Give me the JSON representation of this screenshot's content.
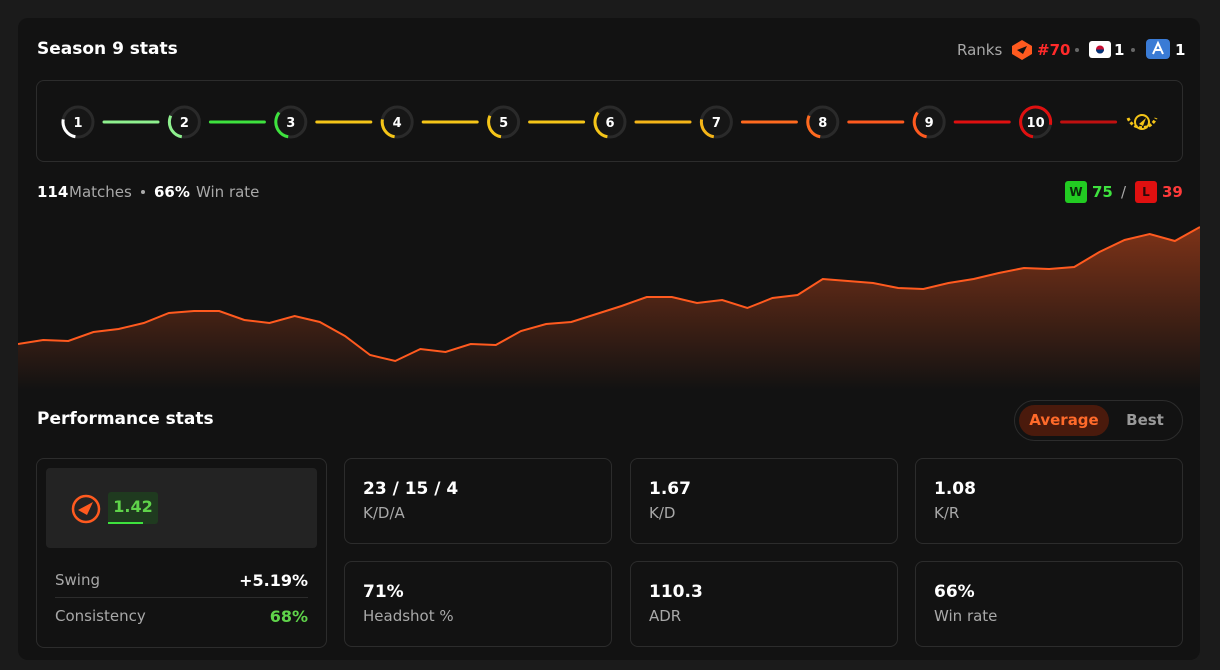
{
  "header": {
    "title": "Season 9 stats",
    "ranks_label": "Ranks",
    "ranks": [
      "#70",
      "1",
      "1"
    ]
  },
  "levels": [
    "1",
    "2",
    "3",
    "4",
    "5",
    "6",
    "7",
    "8",
    "9",
    "10"
  ],
  "summary": {
    "matches": "114",
    "matches_label": "Matches",
    "win_rate": "66%",
    "win_rate_label": "Win rate",
    "wins_badge": "W",
    "wins": "75",
    "separator": "/",
    "losses_badge": "L",
    "losses": "39"
  },
  "chart_data": {
    "type": "area",
    "color": "#ff5a1f",
    "ylim": [
      0,
      170
    ],
    "values": [
      41,
      45,
      44,
      53,
      56,
      62,
      72,
      74,
      74,
      65,
      62,
      69,
      63,
      49,
      30,
      24,
      36,
      33,
      41,
      40,
      54,
      61,
      63,
      71,
      79,
      88,
      88,
      82,
      85,
      77,
      87,
      90,
      106,
      104,
      102,
      97,
      96,
      102,
      106,
      112,
      117,
      116,
      118,
      133,
      145,
      151,
      144,
      158
    ]
  },
  "performance": {
    "title": "Performance stats",
    "toggle": [
      "Average",
      "Best"
    ],
    "rating": "1.42",
    "swing_label": "Swing",
    "swing": "+5.19%",
    "consistency_label": "Consistency",
    "consistency": "68%",
    "cards": [
      {
        "value": "23 / 15 / 4",
        "label": "K/D/A"
      },
      {
        "value": "1.67",
        "label": "K/D"
      },
      {
        "value": "1.08",
        "label": "K/R"
      },
      {
        "value": "71%",
        "label": "Headshot %"
      },
      {
        "value": "110.3",
        "label": "ADR"
      },
      {
        "value": "66%",
        "label": "Win rate"
      }
    ]
  }
}
